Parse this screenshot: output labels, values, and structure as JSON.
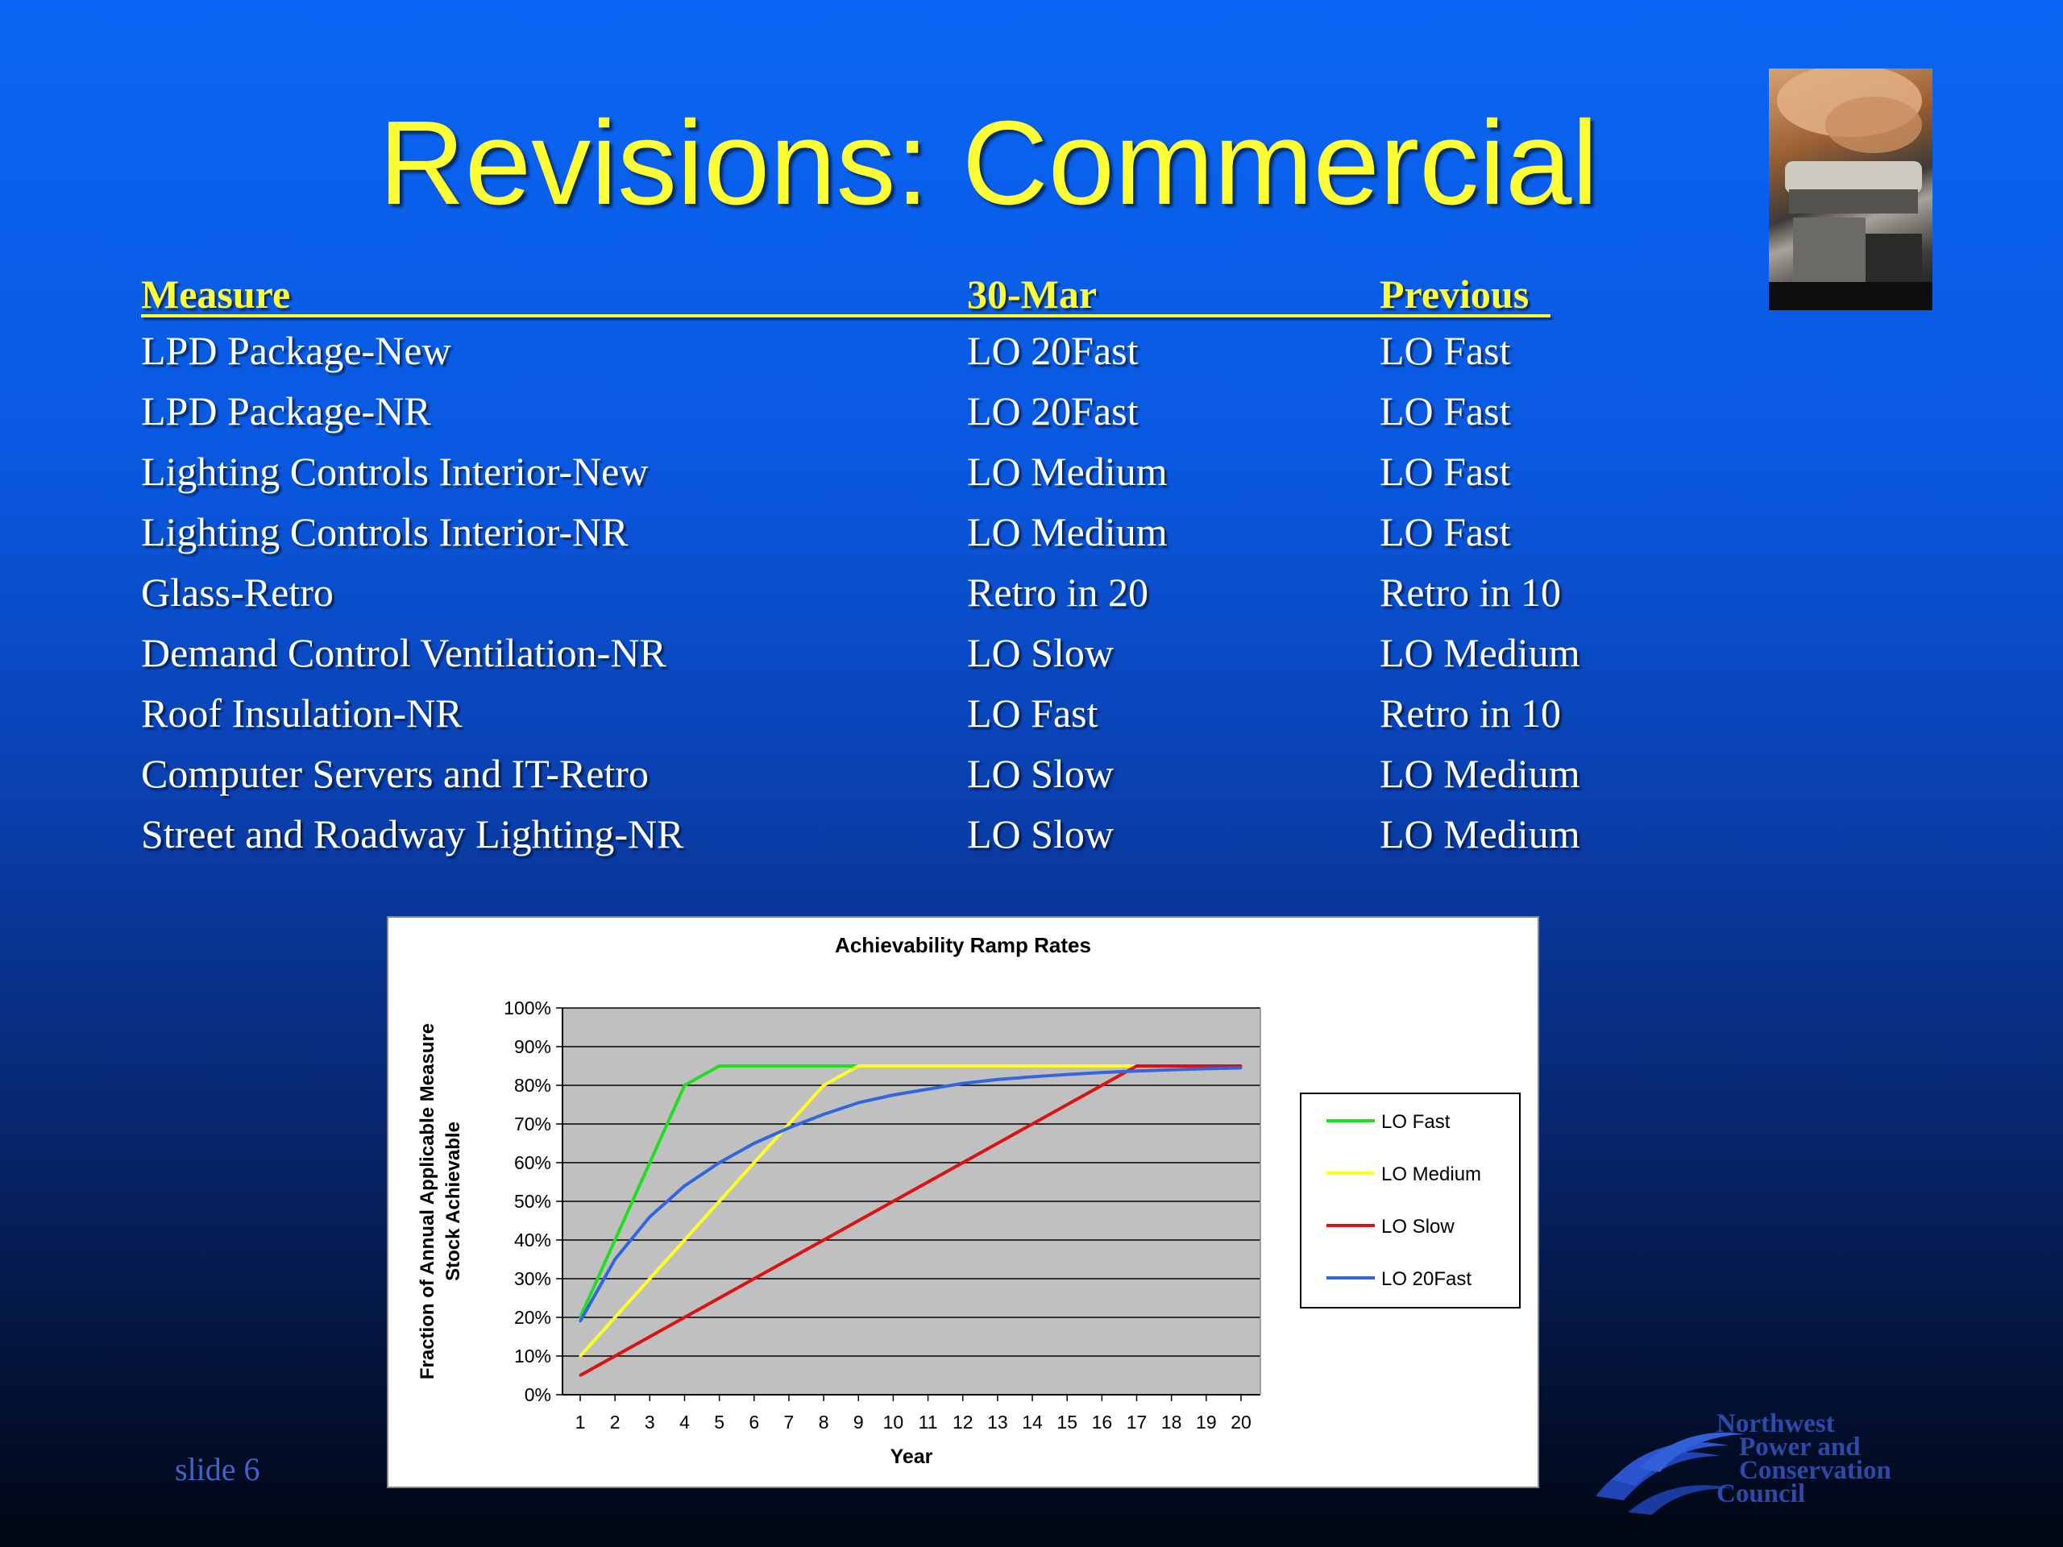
{
  "slide": {
    "title": "Revisions: Commercial",
    "slide_number": "slide 6"
  },
  "table": {
    "headers": [
      "Measure",
      "30-Mar",
      "Previous"
    ],
    "rows": [
      [
        "LPD Package-New",
        "LO 20Fast",
        "LO Fast"
      ],
      [
        "LPD Package-NR",
        "LO 20Fast",
        "LO Fast"
      ],
      [
        "Lighting Controls Interior-New",
        "LO Medium",
        "LO Fast"
      ],
      [
        "Lighting Controls Interior-NR",
        "LO Medium",
        "LO Fast"
      ],
      [
        "Glass-Retro",
        "Retro in 20",
        "Retro in 10"
      ],
      [
        "Demand Control Ventilation-NR",
        "LO Slow",
        "LO Medium"
      ],
      [
        "Roof Insulation-NR",
        "LO Fast",
        "Retro in 10"
      ],
      [
        "Computer Servers and IT-Retro",
        "LO Slow",
        "LO Medium"
      ],
      [
        "Street and Roadway Lighting-NR",
        "LO Slow",
        "LO Medium"
      ]
    ]
  },
  "logo": {
    "lines": [
      "Northwest",
      "Power and",
      "Conservation",
      "Council"
    ]
  },
  "colors": {
    "title": "#ffff33",
    "header": "#ffff33",
    "body_text": "#ffffff",
    "plot_background": "#c0c0c0",
    "slide_number": "#3f63cf",
    "logo": "#2c4aa8"
  },
  "chart_data": {
    "type": "line",
    "title": "Achievability Ramp Rates",
    "xlabel": "Year",
    "ylabel": "Fraction of Annual Applicable Measure Stock Achievable",
    "x": [
      1,
      2,
      3,
      4,
      5,
      6,
      7,
      8,
      9,
      10,
      11,
      12,
      13,
      14,
      15,
      16,
      17,
      18,
      19,
      20
    ],
    "ylim": [
      0,
      100
    ],
    "yticks": [
      "0%",
      "10%",
      "20%",
      "30%",
      "40%",
      "50%",
      "60%",
      "70%",
      "80%",
      "90%",
      "100%"
    ],
    "grid": true,
    "legend_position": "right",
    "series": [
      {
        "name": "LO Fast",
        "color": "#22dd22",
        "values": [
          20,
          40,
          60,
          80,
          85,
          85,
          85,
          85,
          85,
          85,
          85,
          85,
          85,
          85,
          85,
          85,
          85,
          85,
          85,
          85
        ]
      },
      {
        "name": "LO Medium",
        "color": "#ffff22",
        "values": [
          10,
          20,
          30,
          40,
          50,
          60,
          70,
          80,
          85,
          85,
          85,
          85,
          85,
          85,
          85,
          85,
          85,
          85,
          85,
          85
        ]
      },
      {
        "name": "LO Slow",
        "color": "#dd1111",
        "values": [
          5,
          10,
          15,
          20,
          25,
          30,
          35,
          40,
          45,
          50,
          55,
          60,
          65,
          70,
          75,
          80,
          85,
          85,
          85,
          85
        ]
      },
      {
        "name": "LO 20Fast",
        "color": "#3366dd",
        "values": [
          19,
          35,
          46,
          54,
          60,
          65,
          69,
          72.5,
          75.5,
          77.5,
          79,
          80.5,
          81.5,
          82.2,
          82.8,
          83.3,
          83.7,
          84,
          84.3,
          84.5
        ]
      }
    ]
  }
}
